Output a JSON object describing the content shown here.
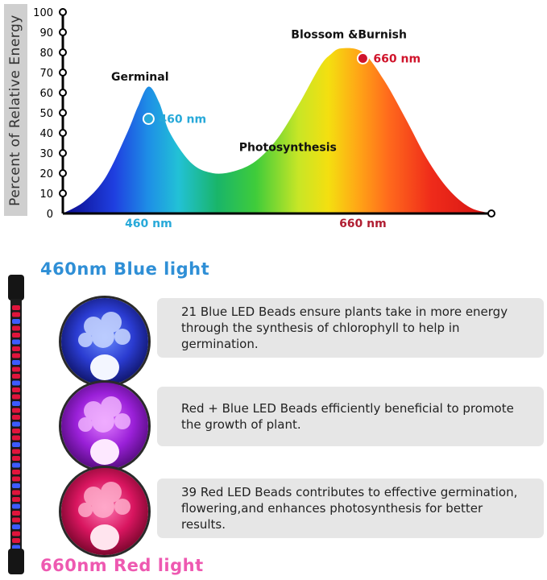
{
  "chart_data": {
    "type": "area",
    "ylabel": "Percent of Relative Energy",
    "yticks": [
      "100",
      "90",
      "80",
      "70",
      "60",
      "50",
      "40",
      "30",
      "20",
      "10",
      "0"
    ],
    "ylim": [
      0,
      100
    ],
    "xlim": [
      380,
      780
    ],
    "x": [
      380,
      400,
      420,
      440,
      450,
      460,
      470,
      480,
      500,
      520,
      540,
      560,
      580,
      600,
      620,
      630,
      640,
      660,
      680,
      700,
      720,
      740,
      760,
      780
    ],
    "y": [
      0,
      6,
      18,
      40,
      53,
      63,
      55,
      40,
      25,
      20,
      21,
      26,
      37,
      54,
      73,
      79,
      82,
      80,
      66,
      47,
      27,
      12,
      3,
      0
    ],
    "x_tick_labels": [
      {
        "label": "460 nm",
        "x": 460,
        "color": "#27a9d9"
      },
      {
        "label": "660 nm",
        "x": 660,
        "color": "#b01e32"
      }
    ],
    "markers": [
      {
        "label": "460 nm",
        "x": 460,
        "y": 47,
        "color": "#27a9d9"
      },
      {
        "label": "660 nm",
        "x": 660,
        "y": 77,
        "color": "#d0142b"
      }
    ],
    "annotations": [
      {
        "text": "Germinal",
        "x": 452,
        "y": 66
      },
      {
        "text": "Photosynthesis",
        "x": 590,
        "y": 31
      },
      {
        "text": "Blossom &Burnish",
        "x": 647,
        "y": 87
      }
    ]
  },
  "sections": {
    "blue_title": "460nm Blue light",
    "red_title": "660nm Red light",
    "blue_color": "#2f8fd6",
    "red_color": "#ee59b1"
  },
  "cards": [
    {
      "text": "21 Blue LED Beads ensure plants take in more energy through the synthesis of chlorophyll to help in germination.",
      "icon": "blue-plant-icon"
    },
    {
      "text": "Red + Blue LED Beads efficiently beneficial to promote the growth of plant.",
      "icon": "purple-plant-icon"
    },
    {
      "text": "39 Red LED Beads contributes to effective germination, flowering,and enhances photosynthesis for better results.",
      "icon": "red-plant-icon"
    }
  ]
}
